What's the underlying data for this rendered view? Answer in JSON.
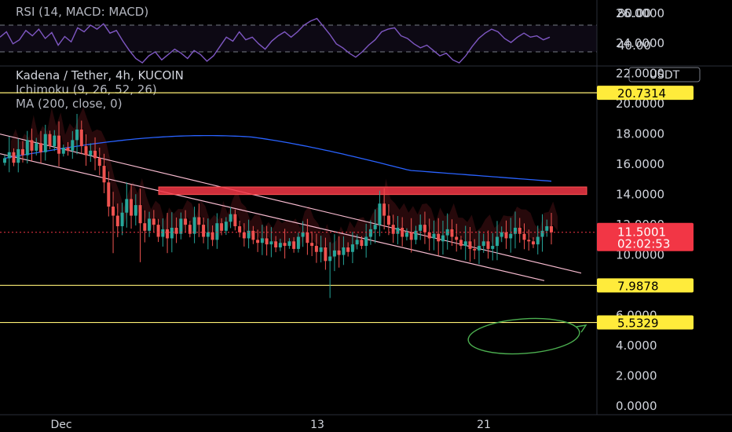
{
  "rsi_panel": {
    "legend": "RSI (14, MACD: MACD)",
    "levels": [
      80,
      40
    ],
    "level_labels": [
      "80.00",
      "40.00"
    ],
    "line_color": "#7e57c2",
    "band_color": "#7e57c2"
  },
  "main_panel": {
    "legend_title": "Kadena / Tether, 4h, KUCOIN",
    "legend_indicators": [
      "Ichimoku (9, 26, 52, 26)",
      "MA (200, close, 0)"
    ],
    "currency_badge": "USDT"
  },
  "chart_data": {
    "type": "candlestick",
    "symbol": "Kadena / Tether",
    "interval": "4h",
    "exchange": "KUCOIN",
    "ylim": [
      0,
      27
    ],
    "y_ticks": [
      "26.0000",
      "24.0000",
      "22.0000",
      "20.0000",
      "18.0000",
      "16.0000",
      "14.0000",
      "12.0000",
      "10.0000",
      "8.0000",
      "6.0000",
      "4.0000",
      "2.0000",
      "0.0000"
    ],
    "x_ticks": [
      "Dec",
      "13",
      "21"
    ],
    "price_series_shape": [
      16.4,
      16.8,
      16.1,
      17.0,
      16.6,
      17.6,
      16.9,
      17.4,
      16.8,
      18.0,
      17.2,
      17.9,
      16.7,
      17.1,
      16.9,
      17.6,
      18.3,
      17.2,
      16.6,
      16.9,
      16.4,
      15.9,
      14.8,
      13.2,
      12.6,
      11.9,
      12.8,
      13.7,
      12.6,
      13.3,
      12.1,
      11.6,
      12.4,
      12.0,
      11.2,
      11.7,
      11.1,
      11.8,
      11.4,
      12.4,
      12.0,
      11.4,
      12.5,
      12.0,
      11.2,
      11.5,
      11.0,
      12.1,
      11.6,
      12.2,
      12.7,
      11.9,
      11.5,
      11.1,
      11.6,
      11.0,
      10.8,
      11.1,
      10.7,
      10.9,
      10.5,
      10.8,
      10.6,
      10.9,
      10.4,
      11.2,
      11.5,
      10.8,
      10.6,
      10.2,
      10.5,
      9.6,
      9.9,
      10.3,
      10.0,
      10.5,
      10.2,
      10.7,
      11.0,
      10.6,
      11.2,
      11.7,
      12.0,
      13.4,
      12.6,
      12.0,
      11.4,
      11.8,
      11.2,
      11.5,
      11.0,
      11.6,
      12.0,
      11.5,
      11.1,
      11.4,
      10.9,
      11.3,
      11.7,
      11.2,
      11.0,
      10.6,
      10.9,
      10.4,
      10.3,
      10.6,
      10.9,
      10.4,
      10.6,
      11.2,
      11.5,
      11.1,
      11.4,
      11.8,
      11.4,
      11.0,
      10.9,
      10.7,
      11.2,
      11.6,
      11.9,
      11.5
    ],
    "ma200_color": "#2962ff",
    "up_color": "#26a69a",
    "down_color": "#ef5350",
    "horizontal_levels": [
      {
        "value": 20.7314,
        "label": "20.7314",
        "color": "#fff176"
      },
      {
        "value": 7.9878,
        "label": "7.9878",
        "color": "#fff176"
      },
      {
        "value": 5.5329,
        "label": "5.5329",
        "color": "#fff176"
      }
    ],
    "resistance_zone": {
      "top": 14.5,
      "bottom": 14.0,
      "color": "#f23645"
    },
    "current_price": {
      "value": 11.5001,
      "label": "11.5001",
      "countdown": "02:02:53",
      "color": "#f23645"
    },
    "annotation_circle_color": "#4caf50"
  }
}
